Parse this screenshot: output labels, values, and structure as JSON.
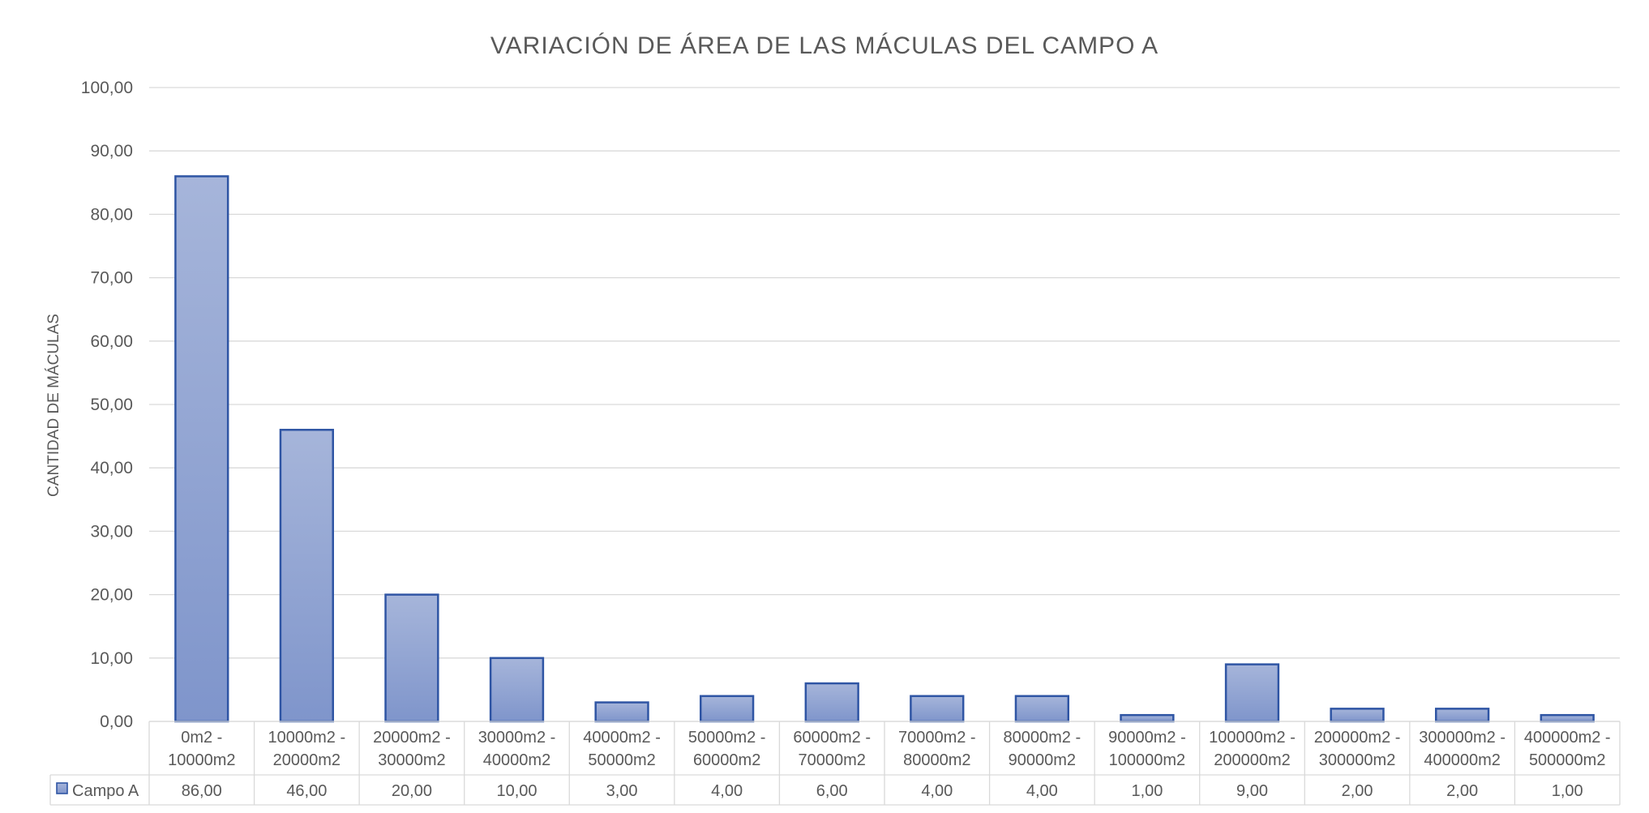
{
  "chart_data": {
    "type": "bar",
    "title": "VARIACIÓN  DE ÁREA DE LAS MÁCULAS DEL CAMPO  A",
    "xlabel": "",
    "ylabel": "CANTIDAD DE MÁCULAS",
    "ylim": [
      0,
      100
    ],
    "yticks": [
      "0,00",
      "10,00",
      "20,00",
      "30,00",
      "40,00",
      "50,00",
      "60,00",
      "70,00",
      "80,00",
      "90,00",
      "100,00"
    ],
    "grid": true,
    "legend": "data-table",
    "colors": {
      "bar_fill_top": "#a6b5da",
      "bar_fill_bottom": "#7f95cb",
      "bar_stroke": "#2f55a4"
    },
    "categories": [
      [
        "0m2 -",
        "10000m2"
      ],
      [
        "10000m2 -",
        "20000m2"
      ],
      [
        "20000m2 -",
        "30000m2"
      ],
      [
        "30000m2 -",
        "40000m2"
      ],
      [
        "40000m2 -",
        "50000m2"
      ],
      [
        "50000m2 -",
        "60000m2"
      ],
      [
        "60000m2 -",
        "70000m2"
      ],
      [
        "70000m2 -",
        "80000m2"
      ],
      [
        "80000m2 -",
        "90000m2"
      ],
      [
        "90000m2 -",
        "100000m2"
      ],
      [
        "100000m2 -",
        "200000m2"
      ],
      [
        "200000m2 -",
        "300000m2"
      ],
      [
        "300000m2 -",
        "400000m2"
      ],
      [
        "400000m2 -",
        "500000m2"
      ]
    ],
    "series": [
      {
        "name": "Campo A",
        "values": [
          86,
          46,
          20,
          10,
          3,
          4,
          6,
          4,
          4,
          1,
          9,
          2,
          2,
          1
        ],
        "value_labels": [
          "86,00",
          "46,00",
          "20,00",
          "10,00",
          "3,00",
          "4,00",
          "6,00",
          "4,00",
          "4,00",
          "1,00",
          "9,00",
          "2,00",
          "2,00",
          "1,00"
        ]
      }
    ]
  }
}
